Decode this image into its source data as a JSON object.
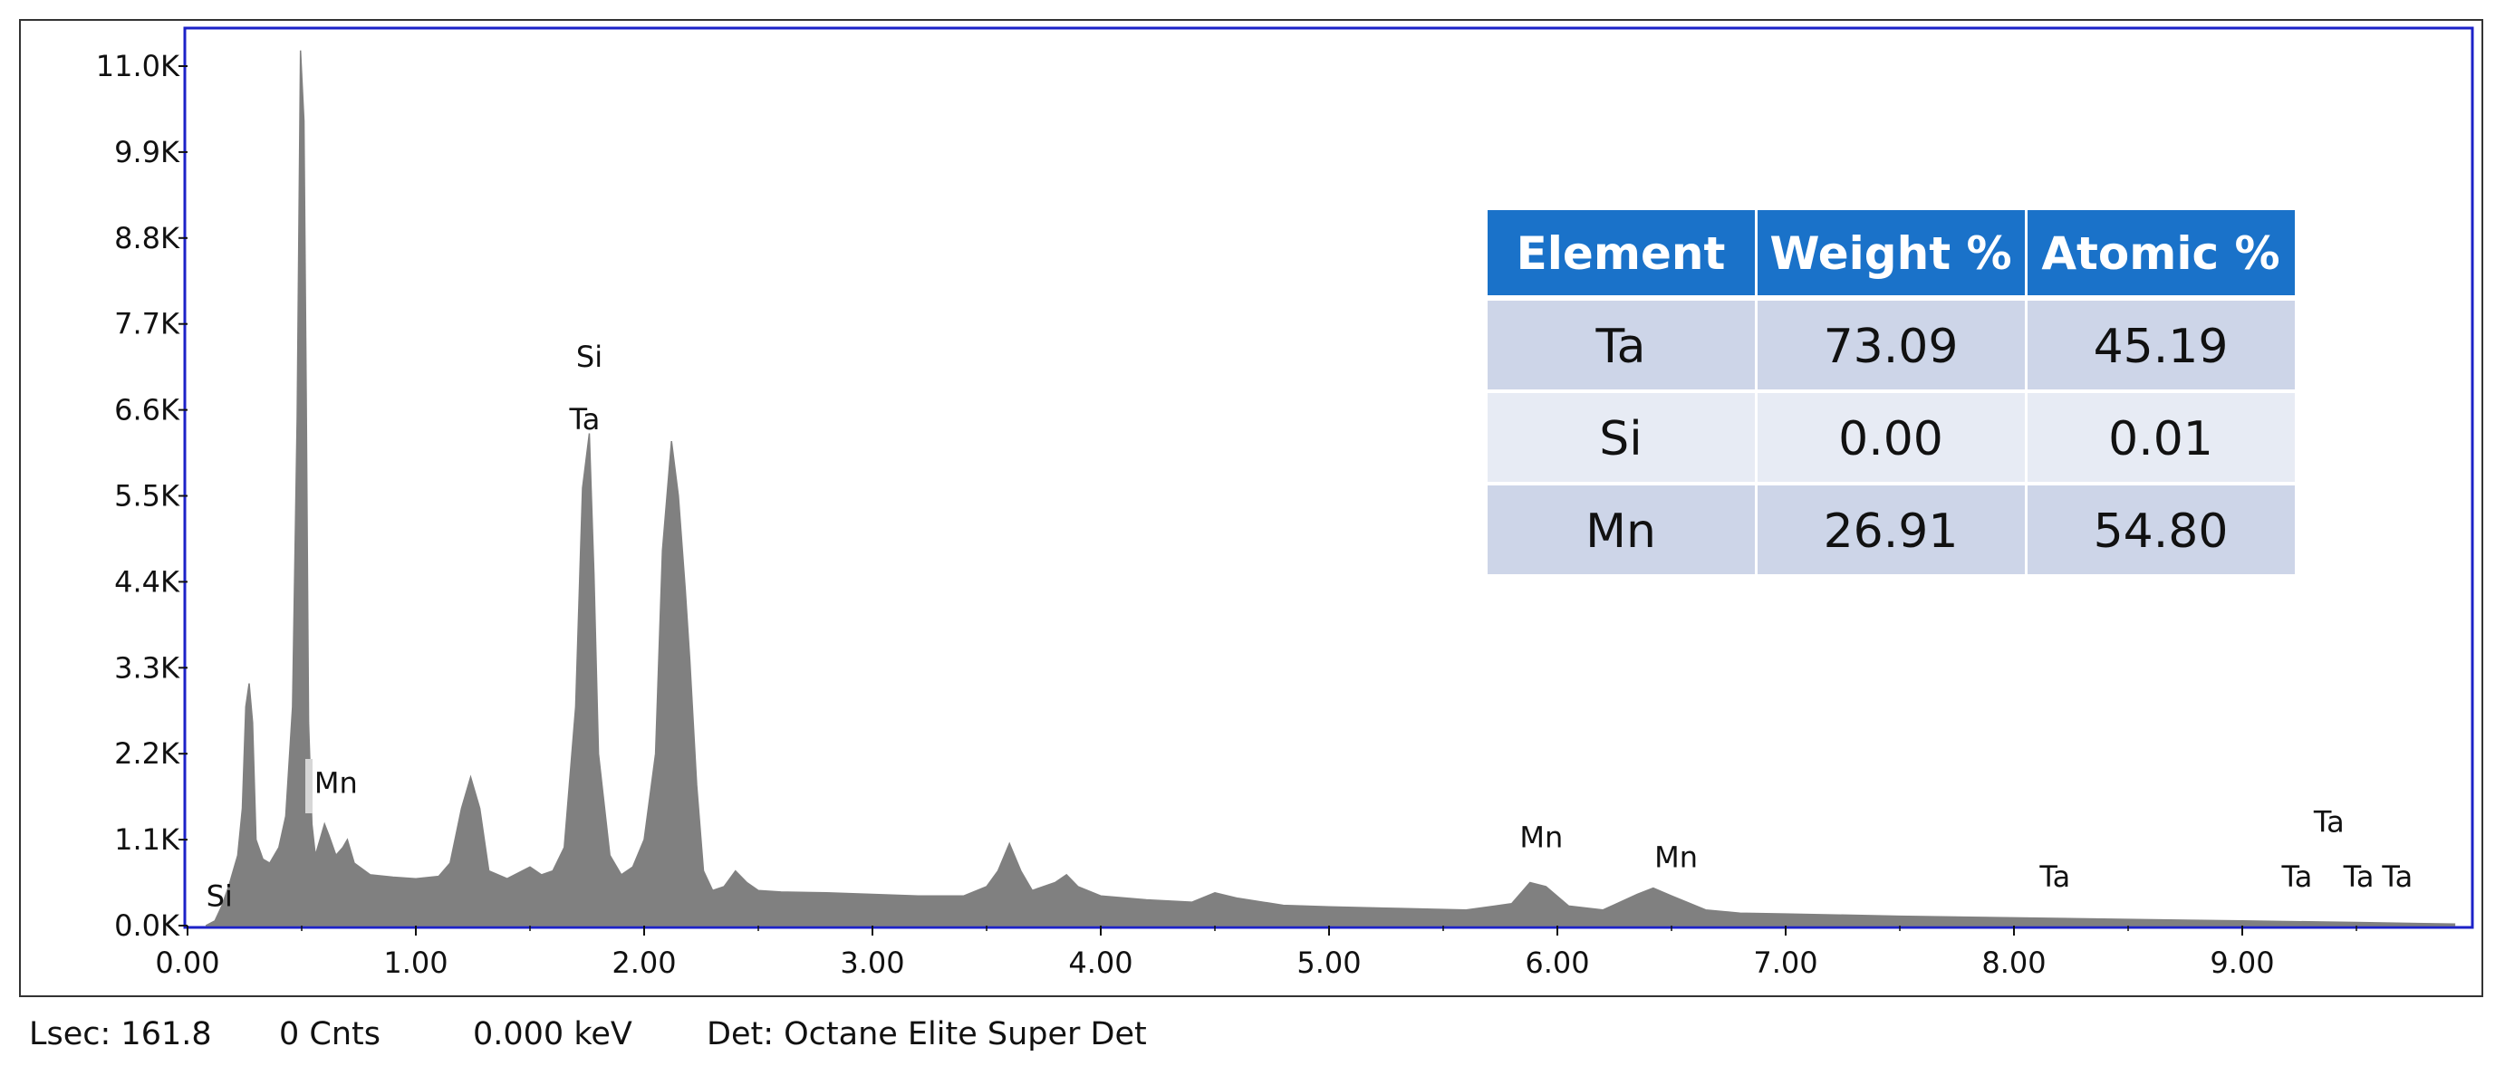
{
  "chart_data": {
    "type": "area",
    "x_unit": "keV",
    "x_ticks": [
      "0.00",
      "1.00",
      "2.00",
      "3.00",
      "4.00",
      "5.00",
      "6.00",
      "7.00",
      "8.00",
      "9.00"
    ],
    "y_ticks": [
      "0.0K",
      "1.1K",
      "2.2K",
      "3.3K",
      "4.4K",
      "5.5K",
      "6.6K",
      "7.7K",
      "8.8K",
      "9.9K",
      "11.0K"
    ],
    "xlim": [
      0,
      10
    ],
    "ylim": [
      0,
      11000
    ],
    "grid": false,
    "series": [
      {
        "color": "#808080",
        "x": [
          0.08,
          0.12,
          0.15,
          0.18,
          0.2,
          0.22,
          0.24,
          0.255,
          0.27,
          0.285,
          0.3,
          0.33,
          0.36,
          0.4,
          0.43,
          0.46,
          0.48,
          0.495,
          0.51,
          0.52,
          0.53,
          0.545,
          0.56,
          0.58,
          0.6,
          0.62,
          0.65,
          0.68,
          0.7,
          0.73,
          0.8,
          0.9,
          1.0,
          1.1,
          1.15,
          1.2,
          1.24,
          1.28,
          1.32,
          1.4,
          1.5,
          1.55,
          1.6,
          1.65,
          1.7,
          1.73,
          1.76,
          1.78,
          1.8,
          1.85,
          1.9,
          1.95,
          2.0,
          2.05,
          2.08,
          2.12,
          2.15,
          2.18,
          2.2,
          2.23,
          2.26,
          2.3,
          2.35,
          2.4,
          2.45,
          2.5,
          2.6,
          2.8,
          3.0,
          3.2,
          3.4,
          3.5,
          3.55,
          3.6,
          3.65,
          3.7,
          3.8,
          3.85,
          3.9,
          4.0,
          4.2,
          4.4,
          4.5,
          4.6,
          4.8,
          5.0,
          5.3,
          5.6,
          5.8,
          5.88,
          5.95,
          6.05,
          6.2,
          6.35,
          6.42,
          6.5,
          6.65,
          6.8,
          7.0,
          7.5,
          8.0,
          8.5,
          9.0,
          9.5,
          9.93
        ],
        "values": [
          0,
          60,
          250,
          500,
          700,
          900,
          1500,
          2800,
          3100,
          2600,
          1100,
          850,
          800,
          1000,
          1400,
          2800,
          6500,
          11200,
          10300,
          6800,
          2600,
          1300,
          900,
          1100,
          1300,
          1150,
          900,
          1000,
          1100,
          800,
          650,
          620,
          600,
          630,
          800,
          1500,
          1900,
          1500,
          700,
          600,
          750,
          650,
          700,
          1000,
          2800,
          5600,
          6300,
          4500,
          2200,
          900,
          650,
          750,
          1100,
          2200,
          4800,
          6200,
          5500,
          4300,
          3400,
          1800,
          700,
          450,
          500,
          700,
          550,
          450,
          430,
          420,
          400,
          380,
          380,
          500,
          700,
          1050,
          700,
          450,
          550,
          650,
          500,
          380,
          330,
          300,
          420,
          350,
          260,
          240,
          220,
          200,
          280,
          550,
          500,
          250,
          200,
          400,
          480,
          380,
          200,
          160,
          150,
          120,
          100,
          80,
          60,
          40,
          20
        ]
      }
    ],
    "peak_labels": [
      {
        "text": "Si",
        "x": 0.14,
        "y": 250
      },
      {
        "text": "Mn",
        "x": 0.65,
        "y": 1700
      },
      {
        "text": "Si",
        "x": 1.76,
        "y": 7150
      },
      {
        "text": "Ta",
        "x": 1.74,
        "y": 6350
      },
      {
        "text": "Mn",
        "x": 5.93,
        "y": 1000
      },
      {
        "text": "Mn",
        "x": 6.52,
        "y": 750
      },
      {
        "text": "Ta",
        "x": 8.18,
        "y": 500
      },
      {
        "text": "Ta",
        "x": 9.38,
        "y": 1200
      },
      {
        "text": "Ta",
        "x": 9.24,
        "y": 500
      },
      {
        "text": "Ta",
        "x": 9.51,
        "y": 500
      },
      {
        "text": "Ta",
        "x": 9.68,
        "y": 500
      }
    ]
  },
  "table": {
    "headers": [
      "Element",
      "Weight %",
      "Atomic %"
    ],
    "rows": [
      [
        "Ta",
        "73.09",
        "45.19"
      ],
      [
        "Si",
        "0.00",
        "0.01"
      ],
      [
        "Mn",
        "26.91",
        "54.80"
      ]
    ],
    "header_color": "#1a72c9",
    "row_colors": [
      "#cdd5e8",
      "#e7ebf4",
      "#cdd5e8"
    ]
  },
  "status": {
    "lsec": "Lsec: 161.8",
    "cnts": "0 Cnts",
    "kev": "0.000 keV",
    "det": "Det: Octane Elite Super Det"
  },
  "colors": {
    "plot_border": "#1c22c8",
    "outer_border": "#333333",
    "spectrum_fill": "#808080",
    "cursor_marker": "#d6d6d6"
  }
}
